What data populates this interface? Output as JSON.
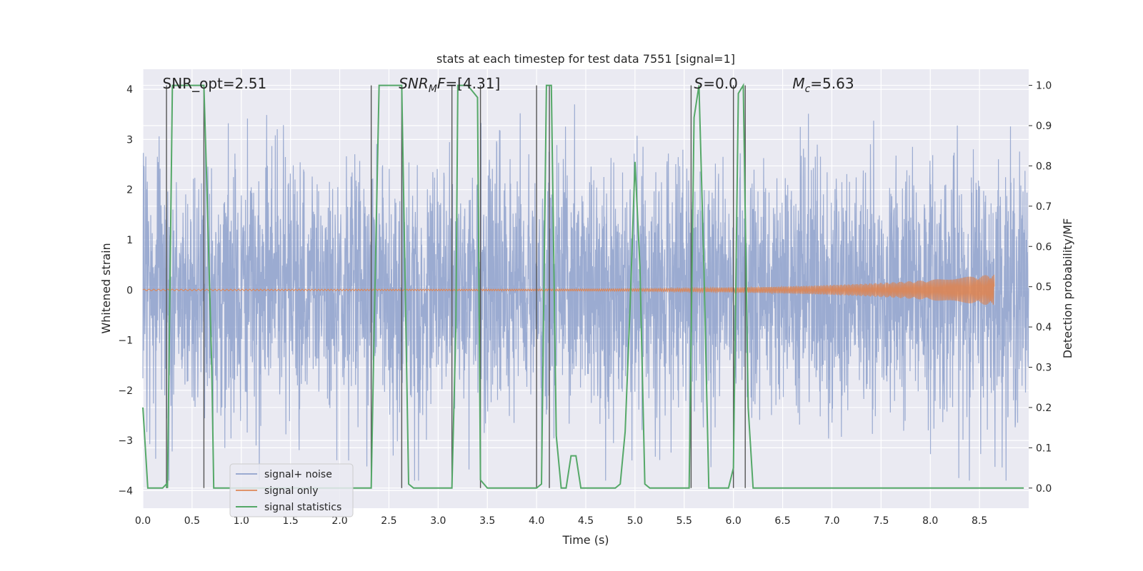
{
  "chart_data": {
    "type": "line",
    "title": "stats at each timestep for test data 7551 [signal=1]",
    "xlabel": "Time (s)",
    "ylabel_left": "Whitened strain",
    "ylabel_right": "Detection probability/MF",
    "xlim": [
      0,
      9
    ],
    "ylim_left": [
      -4.35,
      4.4
    ],
    "ylim_right": [
      -0.05,
      1.04
    ],
    "x_ticks": [
      "0.0",
      "0.5",
      "1.0",
      "1.5",
      "2.0",
      "2.5",
      "3.0",
      "3.5",
      "4.0",
      "4.5",
      "5.0",
      "5.5",
      "6.0",
      "6.5",
      "7.0",
      "7.5",
      "8.0",
      "8.5"
    ],
    "y_ticks_left": [
      "−4",
      "−3",
      "−2",
      "−1",
      "0",
      "1",
      "2",
      "3",
      "4"
    ],
    "y_ticks_right": [
      "0.0",
      "0.1",
      "0.2",
      "0.3",
      "0.4",
      "0.5",
      "0.6",
      "0.7",
      "0.8",
      "0.9",
      "1.0"
    ],
    "grid": true,
    "legend_position": "lower-left",
    "annotations": [
      {
        "text": "SNR_opt=2.51",
        "x": 0.2
      },
      {
        "text": "SNR_MF=[4.31]",
        "x": 2.6
      },
      {
        "text": "S=0.0",
        "x": 5.6
      },
      {
        "text": "Mc=5.63",
        "x": 6.6
      }
    ],
    "series": [
      {
        "name": "signal+ noise",
        "color": "#8da0cb",
        "axis": "left",
        "description": "noisy strain, amplitude approx ±2 to ±3.7"
      },
      {
        "name": "signal only",
        "color": "#dd8452",
        "axis": "left",
        "description": "chirp, near 0, growing to ±0.3 at 8.65 s"
      },
      {
        "name": "signal statistics",
        "color": "#55a868",
        "axis": "right",
        "x": [
          0,
          0.05,
          0.1,
          0.15,
          0.2,
          0.24,
          0.25,
          0.3,
          0.35,
          0.4,
          0.45,
          0.5,
          0.55,
          0.6,
          0.62,
          0.65,
          0.7,
          0.72,
          0.75,
          0.8,
          0.9,
          1.0,
          1.2,
          1.5,
          1.8,
          2.0,
          2.2,
          2.32,
          2.35,
          2.4,
          2.5,
          2.6,
          2.63,
          2.7,
          2.75,
          2.8,
          3.0,
          3.1,
          3.14,
          3.18,
          3.2,
          3.3,
          3.4,
          3.43,
          3.5,
          3.55,
          3.6,
          3.8,
          4.0,
          4.05,
          4.1,
          4.15,
          4.2,
          4.25,
          4.3,
          4.35,
          4.4,
          4.45,
          4.5,
          4.6,
          4.7,
          4.8,
          4.85,
          4.9,
          4.95,
          5.0,
          5.05,
          5.1,
          5.15,
          5.2,
          5.3,
          5.5,
          5.55,
          5.6,
          5.65,
          5.7,
          5.75,
          5.8,
          5.85,
          5.95,
          6.0,
          6.05,
          6.1,
          6.15,
          6.2,
          6.25,
          6.3,
          6.5,
          7.0,
          8.0,
          8.5,
          8.95
        ],
        "y": [
          0.2,
          0.0,
          0.0,
          0.0,
          0.0,
          0.01,
          0.0,
          1.0,
          1.0,
          1.0,
          1.0,
          1.0,
          1.0,
          1.0,
          1.0,
          0.75,
          0.3,
          0.0,
          0.0,
          0.0,
          0.0,
          0.0,
          0.0,
          0.0,
          0.0,
          0.0,
          0.0,
          0.0,
          0.4,
          1.0,
          1.0,
          1.0,
          1.0,
          0.01,
          0.0,
          0.0,
          0.0,
          0.0,
          0.0,
          0.4,
          1.0,
          1.0,
          0.97,
          0.02,
          0.0,
          0.0,
          0.0,
          0.0,
          0.0,
          0.01,
          1.0,
          1.0,
          0.13,
          0.0,
          0.0,
          0.08,
          0.08,
          0.0,
          0.0,
          0.0,
          0.0,
          0.0,
          0.01,
          0.14,
          0.45,
          0.81,
          0.55,
          0.01,
          0.0,
          0.0,
          0.0,
          0.0,
          0.0,
          0.92,
          1.0,
          0.55,
          0.0,
          0.0,
          0.0,
          0.0,
          0.05,
          0.98,
          1.0,
          0.2,
          0.0,
          0.0,
          0.0,
          0.0,
          0.0,
          0.0,
          0.0,
          0.0
        ]
      }
    ],
    "vertical_lines_x": [
      0.24,
      0.62,
      2.32,
      2.63,
      3.14,
      3.43,
      4.0,
      4.13,
      5.57,
      6.0,
      6.12
    ]
  }
}
